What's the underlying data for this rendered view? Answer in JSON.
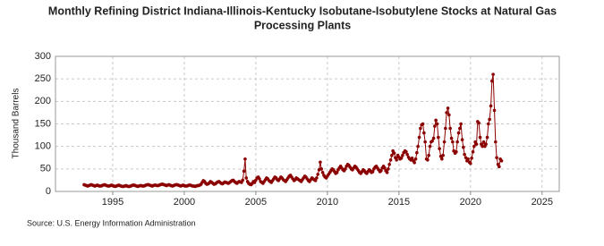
{
  "chart_data": {
    "type": "line",
    "title": "Monthly Refining District Indiana-Illinois-Kentucky Isobutane-Isobutylene Stocks at Natural Gas",
    "subtitle": "Processing Plants",
    "y_label": "Thousand Barrels",
    "source": "Source: U.S. Energy Information Administration",
    "color": "#8b0000",
    "grid": true,
    "xlim": [
      1991,
      2026.2
    ],
    "ylim": [
      0,
      300
    ],
    "xticks": [
      1995,
      2000,
      2005,
      2010,
      2015,
      2020,
      2025
    ],
    "yticks": [
      0,
      50,
      100,
      150,
      200,
      250,
      300
    ],
    "x": [
      1993,
      1993.08,
      1993.17,
      1993.25,
      1993.33,
      1993.42,
      1993.5,
      1993.58,
      1993.67,
      1993.75,
      1993.83,
      1993.92,
      1994,
      1994.08,
      1994.17,
      1994.25,
      1994.33,
      1994.42,
      1994.5,
      1994.58,
      1994.67,
      1994.75,
      1994.83,
      1994.92,
      1995,
      1995.08,
      1995.17,
      1995.25,
      1995.33,
      1995.42,
      1995.5,
      1995.58,
      1995.67,
      1995.75,
      1995.83,
      1995.92,
      1996,
      1996.08,
      1996.17,
      1996.25,
      1996.33,
      1996.42,
      1996.5,
      1996.58,
      1996.67,
      1996.75,
      1996.83,
      1996.92,
      1997,
      1997.08,
      1997.17,
      1997.25,
      1997.33,
      1997.42,
      1997.5,
      1997.58,
      1997.67,
      1997.75,
      1997.83,
      1997.92,
      1998,
      1998.08,
      1998.17,
      1998.25,
      1998.33,
      1998.42,
      1998.5,
      1998.58,
      1998.67,
      1998.75,
      1998.83,
      1998.92,
      1999,
      1999.08,
      1999.17,
      1999.25,
      1999.33,
      1999.42,
      1999.5,
      1999.58,
      1999.67,
      1999.75,
      1999.83,
      1999.92,
      2000,
      2000.08,
      2000.17,
      2000.25,
      2000.33,
      2000.42,
      2000.5,
      2000.58,
      2000.67,
      2000.75,
      2000.83,
      2000.92,
      2001,
      2001.08,
      2001.17,
      2001.25,
      2001.33,
      2001.42,
      2001.5,
      2001.58,
      2001.67,
      2001.75,
      2001.83,
      2001.92,
      2002,
      2002.08,
      2002.17,
      2002.25,
      2002.33,
      2002.42,
      2002.5,
      2002.58,
      2002.67,
      2002.75,
      2002.83,
      2002.92,
      2003,
      2003.08,
      2003.17,
      2003.25,
      2003.33,
      2003.42,
      2003.5,
      2003.58,
      2003.67,
      2003.75,
      2003.83,
      2003.92,
      2004,
      2004.08,
      2004.17,
      2004.25,
      2004.33,
      2004.42,
      2004.5,
      2004.58,
      2004.67,
      2004.75,
      2004.83,
      2004.92,
      2005,
      2005.08,
      2005.17,
      2005.25,
      2005.33,
      2005.42,
      2005.5,
      2005.58,
      2005.67,
      2005.75,
      2005.83,
      2005.92,
      2006,
      2006.08,
      2006.17,
      2006.25,
      2006.33,
      2006.42,
      2006.5,
      2006.58,
      2006.67,
      2006.75,
      2006.83,
      2006.92,
      2007,
      2007.08,
      2007.17,
      2007.25,
      2007.33,
      2007.42,
      2007.5,
      2007.58,
      2007.67,
      2007.75,
      2007.83,
      2007.92,
      2008,
      2008.08,
      2008.17,
      2008.25,
      2008.33,
      2008.42,
      2008.5,
      2008.58,
      2008.67,
      2008.75,
      2008.83,
      2008.92,
      2009,
      2009.08,
      2009.17,
      2009.25,
      2009.33,
      2009.42,
      2009.5,
      2009.58,
      2009.67,
      2009.75,
      2009.83,
      2009.92,
      2010,
      2010.08,
      2010.17,
      2010.25,
      2010.33,
      2010.42,
      2010.5,
      2010.58,
      2010.67,
      2010.75,
      2010.83,
      2010.92,
      2011,
      2011.08,
      2011.17,
      2011.25,
      2011.33,
      2011.42,
      2011.5,
      2011.58,
      2011.67,
      2011.75,
      2011.83,
      2011.92,
      2012,
      2012.08,
      2012.17,
      2012.25,
      2012.33,
      2012.42,
      2012.5,
      2012.58,
      2012.67,
      2012.75,
      2012.83,
      2012.92,
      2013,
      2013.08,
      2013.17,
      2013.25,
      2013.33,
      2013.42,
      2013.5,
      2013.58,
      2013.67,
      2013.75,
      2013.83,
      2013.92,
      2014,
      2014.08,
      2014.17,
      2014.25,
      2014.33,
      2014.42,
      2014.5,
      2014.58,
      2014.67,
      2014.75,
      2014.83,
      2014.92,
      2015,
      2015.08,
      2015.17,
      2015.25,
      2015.33,
      2015.42,
      2015.5,
      2015.58,
      2015.67,
      2015.75,
      2015.83,
      2015.92,
      2016,
      2016.08,
      2016.17,
      2016.25,
      2016.33,
      2016.42,
      2016.5,
      2016.58,
      2016.67,
      2016.75,
      2016.83,
      2016.92,
      2017,
      2017.08,
      2017.17,
      2017.25,
      2017.33,
      2017.42,
      2017.5,
      2017.58,
      2017.67,
      2017.75,
      2017.83,
      2017.92,
      2018,
      2018.08,
      2018.17,
      2018.25,
      2018.33,
      2018.42,
      2018.5,
      2018.58,
      2018.67,
      2018.75,
      2018.83,
      2018.92,
      2019,
      2019.08,
      2019.17,
      2019.25,
      2019.33,
      2019.42,
      2019.5,
      2019.58,
      2019.67,
      2019.75,
      2019.83,
      2019.92,
      2020,
      2020.08,
      2020.17,
      2020.25,
      2020.33,
      2020.42,
      2020.5,
      2020.58,
      2020.67,
      2020.75,
      2020.83,
      2020.92,
      2021,
      2021.08,
      2021.17,
      2021.25,
      2021.33,
      2021.42,
      2021.5,
      2021.58,
      2021.67,
      2021.75,
      2021.83,
      2021.92,
      2022,
      2022.08,
      2022.17
    ],
    "values": [
      15,
      14,
      13,
      12,
      13,
      14,
      15,
      14,
      13,
      12,
      13,
      14,
      13,
      12,
      12,
      13,
      14,
      15,
      14,
      13,
      12,
      12,
      13,
      14,
      13,
      12,
      11,
      12,
      13,
      14,
      13,
      12,
      11,
      11,
      12,
      13,
      12,
      11,
      11,
      12,
      13,
      14,
      14,
      13,
      12,
      11,
      12,
      13,
      13,
      12,
      12,
      13,
      14,
      15,
      15,
      14,
      13,
      12,
      13,
      14,
      14,
      13,
      13,
      14,
      15,
      16,
      16,
      15,
      14,
      13,
      14,
      15,
      14,
      13,
      12,
      13,
      14,
      15,
      15,
      14,
      13,
      12,
      13,
      14,
      13,
      12,
      12,
      13,
      14,
      14,
      13,
      12,
      12,
      11,
      12,
      13,
      13,
      14,
      16,
      20,
      24,
      22,
      18,
      16,
      17,
      19,
      22,
      20,
      18,
      16,
      17,
      19,
      21,
      22,
      20,
      18,
      17,
      19,
      21,
      20,
      19,
      18,
      20,
      22,
      24,
      25,
      22,
      20,
      18,
      20,
      22,
      21,
      20,
      25,
      45,
      72,
      30,
      22,
      18,
      16,
      15,
      18,
      22,
      20,
      25,
      30,
      32,
      28,
      22,
      20,
      18,
      22,
      26,
      30,
      28,
      24,
      22,
      20,
      24,
      28,
      32,
      30,
      26,
      24,
      28,
      32,
      30,
      26,
      24,
      22,
      26,
      30,
      34,
      36,
      32,
      28,
      24,
      26,
      30,
      28,
      26,
      24,
      22,
      26,
      30,
      34,
      32,
      28,
      24,
      22,
      26,
      30,
      28,
      26,
      24,
      30,
      38,
      48,
      65,
      50,
      42,
      36,
      32,
      30,
      34,
      38,
      42,
      46,
      50,
      48,
      44,
      40,
      42,
      48,
      52,
      56,
      52,
      48,
      46,
      50,
      56,
      60,
      58,
      54,
      50,
      48,
      52,
      56,
      54,
      50,
      46,
      42,
      40,
      44,
      48,
      46,
      42,
      40,
      44,
      48,
      46,
      42,
      44,
      50,
      54,
      56,
      52,
      48,
      44,
      46,
      52,
      56,
      52,
      46,
      42,
      50,
      60,
      70,
      80,
      90,
      85,
      75,
      70,
      80,
      76,
      72,
      74,
      80,
      86,
      90,
      88,
      82,
      76,
      72,
      70,
      74,
      68,
      64,
      72,
      86,
      100,
      120,
      140,
      148,
      150,
      130,
      110,
      72,
      70,
      80,
      100,
      110,
      112,
      118,
      145,
      158,
      150,
      120,
      95,
      78,
      72,
      80,
      110,
      140,
      175,
      185,
      170,
      140,
      118,
      110,
      90,
      85,
      88,
      110,
      130,
      140,
      150,
      115,
      98,
      82,
      75,
      68,
      72,
      65,
      62,
      74,
      88,
      100,
      110,
      105,
      155,
      152,
      120,
      105,
      100,
      110,
      100,
      105,
      120,
      150,
      160,
      190,
      245,
      260,
      180,
      110,
      75,
      60,
      55,
      72,
      68
    ]
  }
}
